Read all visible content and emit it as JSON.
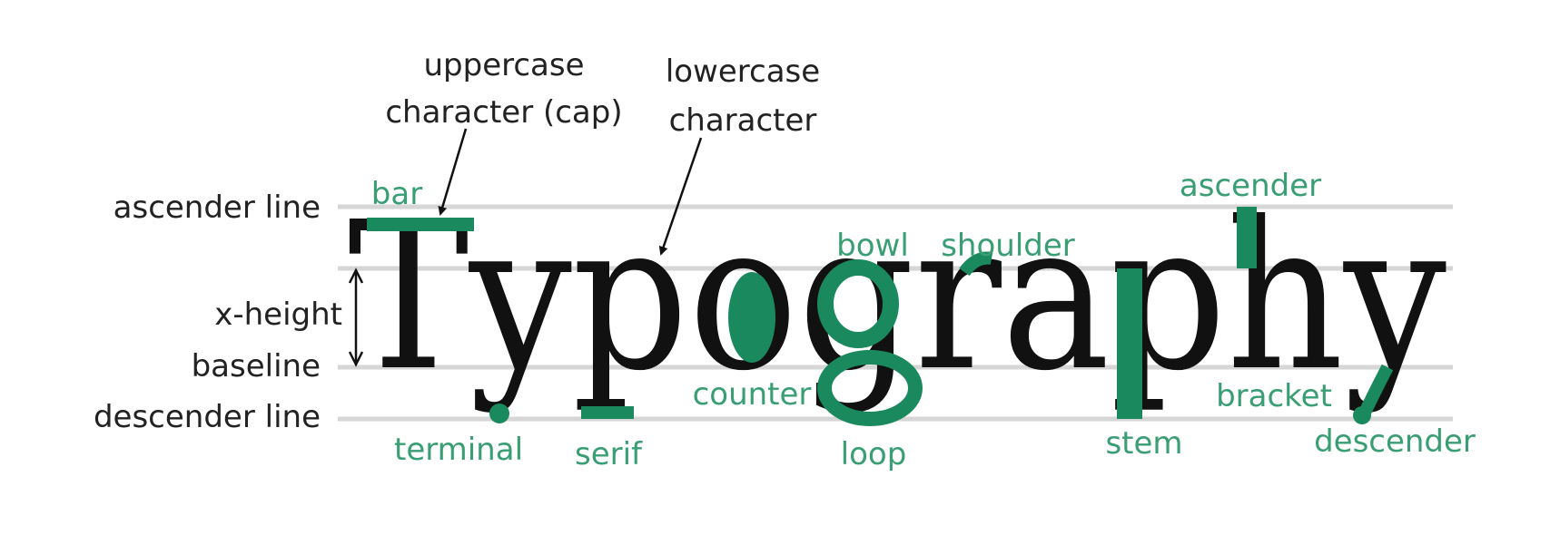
{
  "word": "Typography",
  "colors": {
    "accent": "#1a8a5e",
    "accent_label": "#3a9e74",
    "guide": "#d6d6d6",
    "ink": "#111111",
    "text": "#222222"
  },
  "guide_labels": {
    "ascender_line": "ascender line",
    "x_height": "x-height",
    "baseline": "baseline",
    "descender_line": "descender line"
  },
  "callouts": {
    "uppercase_line1": "uppercase",
    "uppercase_line2": "character (cap)",
    "lowercase_line1": "lowercase",
    "lowercase_line2": "character"
  },
  "parts": {
    "bar": "bar",
    "terminal": "terminal",
    "serif": "serif",
    "counter": "counter",
    "bowl": "bowl",
    "loop": "loop",
    "shoulder": "shoulder",
    "ascender": "ascender",
    "stem": "stem",
    "bracket": "bracket",
    "descender": "descender"
  }
}
